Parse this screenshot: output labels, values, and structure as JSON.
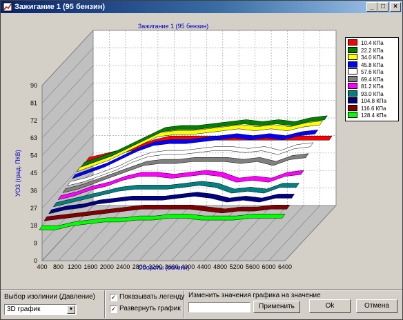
{
  "window": {
    "title": "Зажигание 1 (95 бензин)",
    "buttons": {
      "minimize": "_",
      "maximize": "□",
      "close": "×"
    }
  },
  "chart_data": {
    "type": "line",
    "style": "3D stacked series (waterfall)",
    "title": "Зажигание 1 (95 бензин)",
    "xlabel": "Обороты (об/мин)",
    "ylabel": "УОЗ (град. ПКВ)",
    "x_ticks": [
      "400",
      "800",
      "1200",
      "1600",
      "2000",
      "2400",
      "2800",
      "3200",
      "3600",
      "4000",
      "4400",
      "4800",
      "5200",
      "5600",
      "6000",
      "6400"
    ],
    "y_ticks": [
      "0",
      "9",
      "18",
      "27",
      "36",
      "45",
      "54",
      "63",
      "72",
      "81",
      "90"
    ],
    "ylim": [
      0,
      90
    ],
    "grid": true,
    "legend_position": "right",
    "series": [
      {
        "name": "10.4 КПа",
        "color": "#ff0000",
        "values": [
          27,
          29,
          31,
          33,
          36,
          38,
          38,
          38,
          38,
          38,
          38,
          38,
          38,
          38,
          38,
          38
        ]
      },
      {
        "name": "22.2 КПа",
        "color": "#008000",
        "values": [
          27,
          30,
          33,
          37,
          41,
          45,
          46,
          46,
          47,
          48,
          49,
          48,
          49,
          48,
          50,
          51
        ]
      },
      {
        "name": "34.0 КПа",
        "color": "#ffff00",
        "values": [
          27,
          30,
          33,
          37,
          41,
          45,
          46,
          46,
          47,
          48,
          49,
          48,
          49,
          48,
          50,
          51
        ]
      },
      {
        "name": "45.8 КПа",
        "color": "#0000ff",
        "values": [
          26,
          29,
          32,
          36,
          40,
          43,
          44,
          44,
          45,
          46,
          47,
          46,
          47,
          46,
          48,
          49
        ]
      },
      {
        "name": "57.6 КПа",
        "color": "#ffffff",
        "values": [
          25,
          27,
          30,
          33,
          37,
          40,
          41,
          41,
          42,
          43,
          43,
          42,
          43,
          41,
          44,
          45
        ]
      },
      {
        "name": "69.4 КПа",
        "color": "#808080",
        "values": [
          24,
          26,
          29,
          32,
          35,
          38,
          39,
          39,
          40,
          40,
          40,
          39,
          40,
          38,
          41,
          42
        ]
      },
      {
        "name": "81.2 КПа",
        "color": "#ff00ff",
        "values": [
          23,
          25,
          28,
          30,
          33,
          35,
          35,
          34,
          35,
          36,
          35,
          32,
          33,
          32,
          35,
          36
        ]
      },
      {
        "name": "93.0 КПа",
        "color": "#008080",
        "values": [
          22,
          24,
          26,
          28,
          30,
          31,
          31,
          31,
          32,
          33,
          32,
          29,
          30,
          29,
          32,
          32
        ]
      },
      {
        "name": "104.8 КПа",
        "color": "#000080",
        "values": [
          21,
          23,
          24,
          26,
          27,
          28,
          28,
          28,
          29,
          30,
          29,
          27,
          28,
          27,
          29,
          29
        ]
      },
      {
        "name": "116.6 КПа",
        "color": "#800000",
        "values": [
          20,
          21,
          22,
          23,
          24,
          25,
          26,
          26,
          26,
          26,
          25,
          24,
          25,
          25,
          26,
          26
        ]
      },
      {
        "name": "128.4 КПа",
        "color": "#00ff00",
        "values": [
          18,
          18,
          20,
          21,
          22,
          22,
          23,
          23,
          24,
          24,
          23,
          23,
          23,
          24,
          24,
          24
        ]
      }
    ]
  },
  "controls": {
    "isoline_label": "Выбор изолинии (Давление)",
    "isoline_value": "3D график",
    "show_legend_label": "Показывать легенду",
    "show_legend_checked": "✓",
    "expand_chart_label": "Развернуть график",
    "expand_chart_checked": "✓",
    "change_values_label": "Изменить значения графика на значение",
    "change_value_input": "",
    "apply_button": "Применить",
    "ok_button": "Ok",
    "cancel_button": "Отмена"
  }
}
